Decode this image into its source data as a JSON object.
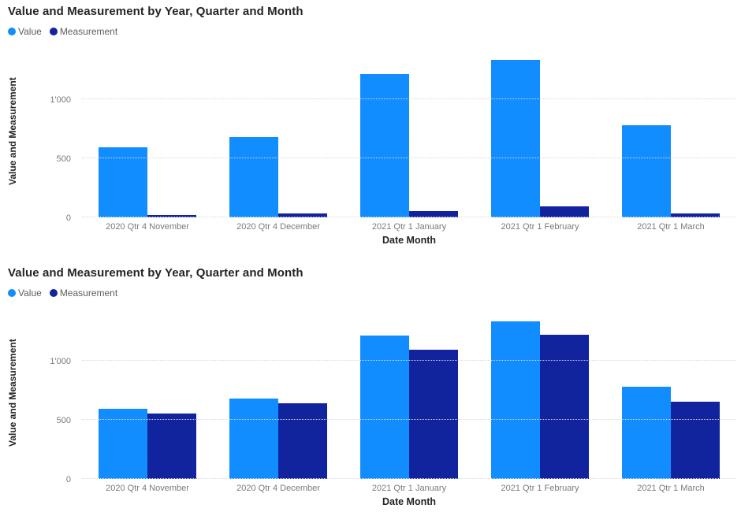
{
  "chart_data": [
    {
      "type": "bar",
      "title": "Value and Measurement by Year, Quarter and Month",
      "categories": [
        "2020 Qtr 4 November",
        "2020 Qtr 4 December",
        "2021 Qtr 1 January",
        "2021 Qtr 1 February",
        "2021 Qtr 1 March"
      ],
      "series": [
        {
          "name": "Value",
          "color": "#118DFF",
          "values": [
            590,
            680,
            1210,
            1330,
            775
          ]
        },
        {
          "name": "Measurement",
          "color": "#12239E",
          "values": [
            20,
            35,
            50,
            90,
            35
          ]
        }
      ],
      "xlabel": "Date Month",
      "ylabel": "Value and Measurement",
      "y_ticks": [
        {
          "value": 0,
          "label": "0"
        },
        {
          "value": 500,
          "label": "500"
        },
        {
          "value": 1000,
          "label": "1'000"
        }
      ],
      "ylim": [
        0,
        1450
      ],
      "grid": "horizontal-dotted",
      "legend_position": "top-left"
    },
    {
      "type": "bar",
      "title": "Value and Measurement by Year, Quarter and Month",
      "categories": [
        "2020 Qtr 4 November",
        "2020 Qtr 4 December",
        "2021 Qtr 1 January",
        "2021 Qtr 1 February",
        "2021 Qtr 1 March"
      ],
      "series": [
        {
          "name": "Value",
          "color": "#118DFF",
          "values": [
            590,
            680,
            1210,
            1330,
            775
          ]
        },
        {
          "name": "Measurement",
          "color": "#12239E",
          "values": [
            555,
            640,
            1090,
            1220,
            650
          ]
        }
      ],
      "xlabel": "Date Month",
      "ylabel": "Value and Measurement",
      "y_ticks": [
        {
          "value": 0,
          "label": "0"
        },
        {
          "value": 500,
          "label": "500"
        },
        {
          "value": 1000,
          "label": "1'000"
        }
      ],
      "ylim": [
        0,
        1450
      ],
      "grid": "horizontal-dotted",
      "legend_position": "top-left"
    }
  ]
}
